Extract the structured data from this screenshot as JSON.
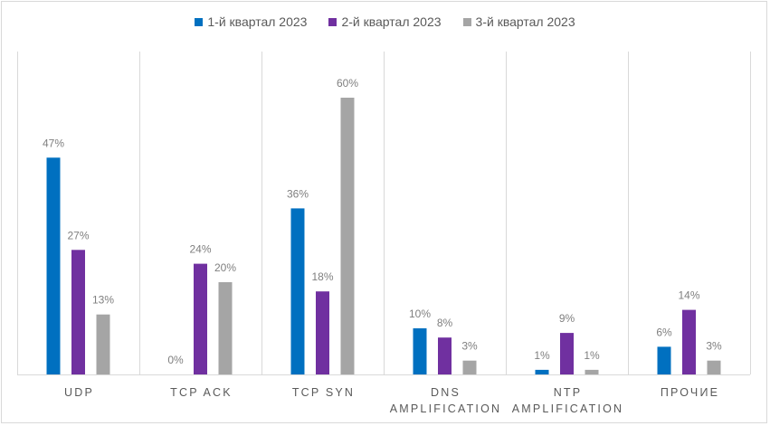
{
  "chart_data": {
    "type": "bar",
    "title": "",
    "xlabel": "",
    "ylabel": "",
    "ylim": [
      0,
      70
    ],
    "grid": "vertical category separators",
    "legend_position": "top-center",
    "value_format": "percent",
    "categories": [
      [
        "UDP"
      ],
      [
        "TCP ACK"
      ],
      [
        "TCP SYN"
      ],
      [
        "DNS",
        "AMPLIFICATION"
      ],
      [
        "NTP",
        "AMPLIFICATION"
      ],
      [
        "ПРОЧИЕ"
      ]
    ],
    "series": [
      {
        "name": "1-й квартал 2023",
        "color": "#0070c0",
        "values": [
          47,
          0,
          36,
          10,
          1,
          6
        ]
      },
      {
        "name": "2-й квартал 2023",
        "color": "#7030a0",
        "values": [
          27,
          24,
          18,
          8,
          9,
          14
        ]
      },
      {
        "name": "3-й квартал 2023",
        "color": "#a5a5a5",
        "values": [
          13,
          20,
          60,
          3,
          1,
          3
        ]
      }
    ]
  }
}
